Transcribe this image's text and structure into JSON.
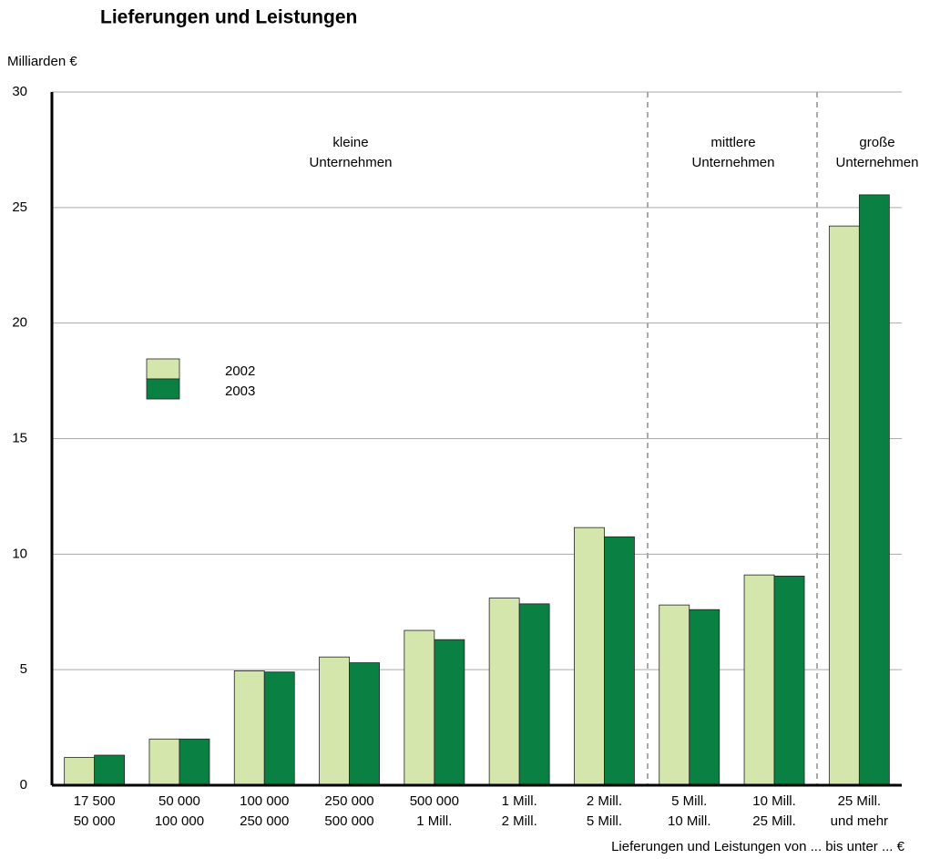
{
  "chart_data": {
    "type": "bar",
    "title": "Lieferungen und Leistungen",
    "y_axis_label": "Milliarden  €",
    "x_axis_label": "Lieferungen und Leistungen von ... bis unter ...  €",
    "annotations": [
      [
        "kleine",
        "Unternehmen"
      ],
      [
        "mittlere",
        "Unternehmen"
      ],
      [
        "große",
        "Unternehmen"
      ]
    ],
    "categories": [
      [
        "17 500",
        "50 000"
      ],
      [
        "50 000",
        "100 000"
      ],
      [
        "100 000",
        "250 000"
      ],
      [
        "250 000",
        "500 000"
      ],
      [
        "500 000",
        "1 Mill."
      ],
      [
        "1 Mill.",
        "2 Mill."
      ],
      [
        "2 Mill.",
        "5 Mill."
      ],
      [
        "5 Mill.",
        "10 Mill."
      ],
      [
        "10 Mill.",
        "25 Mill."
      ],
      [
        "25 Mill.",
        "und mehr"
      ]
    ],
    "series": [
      {
        "name": "2002",
        "color": "#d5e6ad",
        "values": [
          1.2,
          2.0,
          4.95,
          5.55,
          6.7,
          8.1,
          11.15,
          7.8,
          9.1,
          24.2
        ]
      },
      {
        "name": "2003",
        "color": "#0a8043",
        "values": [
          1.3,
          2.0,
          4.9,
          5.3,
          6.3,
          7.85,
          10.75,
          7.6,
          9.05,
          25.55
        ]
      }
    ],
    "ylim": [
      0,
      30
    ],
    "yticks": [
      0,
      5,
      10,
      15,
      20,
      25,
      30
    ],
    "grid": true
  }
}
